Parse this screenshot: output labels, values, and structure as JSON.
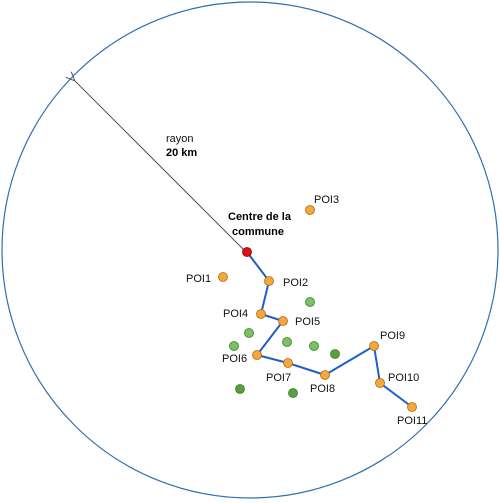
{
  "colors": {
    "boundary": "#2e6fb0",
    "route": "#1f5fc8",
    "poi_fill": "#f4a73c",
    "poi_stroke": "#b06a10",
    "green_fill": "#7bbf67",
    "green_stroke": "#3d7f2a",
    "center_fill": "#e01010",
    "arrow": "#555555"
  },
  "radius": {
    "label": "rayon",
    "value": "20 km"
  },
  "center": {
    "label_line1": "Centre de la",
    "label_line2": "commune"
  },
  "poi_labels": {
    "poi1": "POI1",
    "poi2": "POI2",
    "poi3": "POI3",
    "poi4": "POI4",
    "poi5": "POI5",
    "poi6": "POI6",
    "poi7": "POI7",
    "poi8": "POI8",
    "poi9": "POI9",
    "poi10": "POI10",
    "poi11": "POI11"
  },
  "route_order": [
    "center",
    "poi2",
    "poi4",
    "poi5",
    "poi6",
    "poi7",
    "poi8",
    "poi9",
    "poi10",
    "poi11"
  ]
}
